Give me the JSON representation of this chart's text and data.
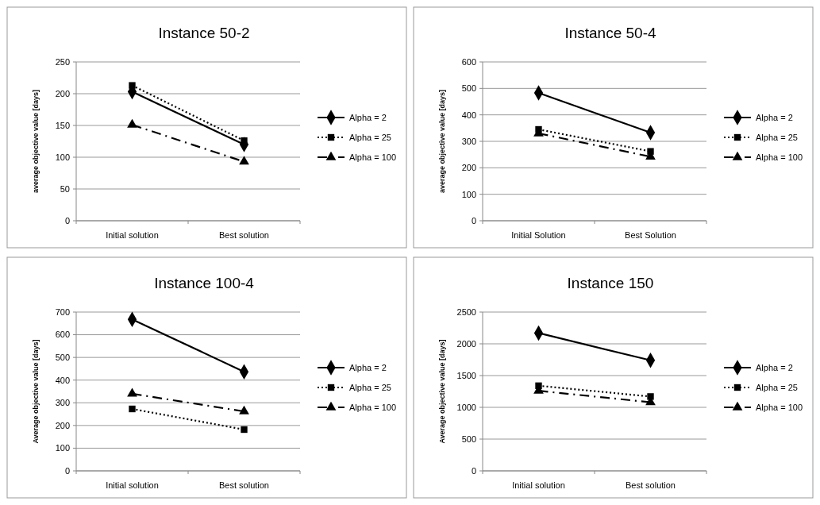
{
  "chart_data": [
    {
      "type": "line",
      "title": "Instance 50-2",
      "ylabel": "average objective value [days]",
      "categories": [
        "Initial solution",
        "Best solution"
      ],
      "ylim": [
        0,
        250
      ],
      "yticks": [
        0,
        50,
        100,
        150,
        200,
        250
      ],
      "grid": "y",
      "legend": "right",
      "series": [
        {
          "name": "Alpha = 2",
          "color": "#000000",
          "values": [
            203,
            120
          ],
          "marker": "diamond",
          "line_style": "solid"
        },
        {
          "name": "Alpha = 25",
          "color": "#000000",
          "values": [
            213,
            126
          ],
          "marker": "square",
          "line_style": "dotted"
        },
        {
          "name": "Alpha = 100",
          "color": "#000000",
          "values": [
            151,
            93
          ],
          "marker": "triangle",
          "line_style": "dashdot"
        }
      ]
    },
    {
      "type": "line",
      "title": "Instance 50-4",
      "ylabel": "average objective value [days]",
      "categories": [
        "Initial Solution",
        "Best Solution"
      ],
      "ylim": [
        0,
        600
      ],
      "yticks": [
        0,
        100,
        200,
        300,
        400,
        500,
        600
      ],
      "grid": "y",
      "legend": "right",
      "series": [
        {
          "name": "Alpha = 2",
          "color": "#000000",
          "values": [
            483,
            333
          ],
          "marker": "diamond",
          "line_style": "solid"
        },
        {
          "name": "Alpha = 25",
          "color": "#000000",
          "values": [
            345,
            262
          ],
          "marker": "square",
          "line_style": "dotted"
        },
        {
          "name": "Alpha = 100",
          "color": "#000000",
          "values": [
            330,
            242
          ],
          "marker": "triangle",
          "line_style": "dashdot"
        }
      ]
    },
    {
      "type": "line",
      "title": "Instance 100-4",
      "ylabel": "Average objective value [days]",
      "categories": [
        "Initial solution",
        "Best solution"
      ],
      "ylim": [
        0,
        700
      ],
      "yticks": [
        0,
        100,
        200,
        300,
        400,
        500,
        600,
        700
      ],
      "grid": "y",
      "legend": "right",
      "series": [
        {
          "name": "Alpha = 2",
          "color": "#000000",
          "values": [
            668,
            437
          ],
          "marker": "diamond",
          "line_style": "solid"
        },
        {
          "name": "Alpha = 25",
          "color": "#000000",
          "values": [
            273,
            182
          ],
          "marker": "square",
          "line_style": "dotted"
        },
        {
          "name": "Alpha = 100",
          "color": "#000000",
          "values": [
            340,
            262
          ],
          "marker": "triangle",
          "line_style": "dashdot"
        }
      ]
    },
    {
      "type": "line",
      "title": "Instance 150",
      "ylabel": "Average objective value [days]",
      "categories": [
        "Initial solution",
        "Best solution"
      ],
      "ylim": [
        0,
        2500
      ],
      "yticks": [
        0,
        500,
        1000,
        1500,
        2000,
        2500
      ],
      "grid": "y",
      "legend": "right",
      "series": [
        {
          "name": "Alpha = 2",
          "color": "#000000",
          "values": [
            2170,
            1740
          ],
          "marker": "diamond",
          "line_style": "solid"
        },
        {
          "name": "Alpha = 25",
          "color": "#000000",
          "values": [
            1340,
            1170
          ],
          "marker": "square",
          "line_style": "dotted"
        },
        {
          "name": "Alpha = 100",
          "color": "#000000",
          "values": [
            1260,
            1080
          ],
          "marker": "triangle",
          "line_style": "dashdot"
        }
      ]
    }
  ]
}
